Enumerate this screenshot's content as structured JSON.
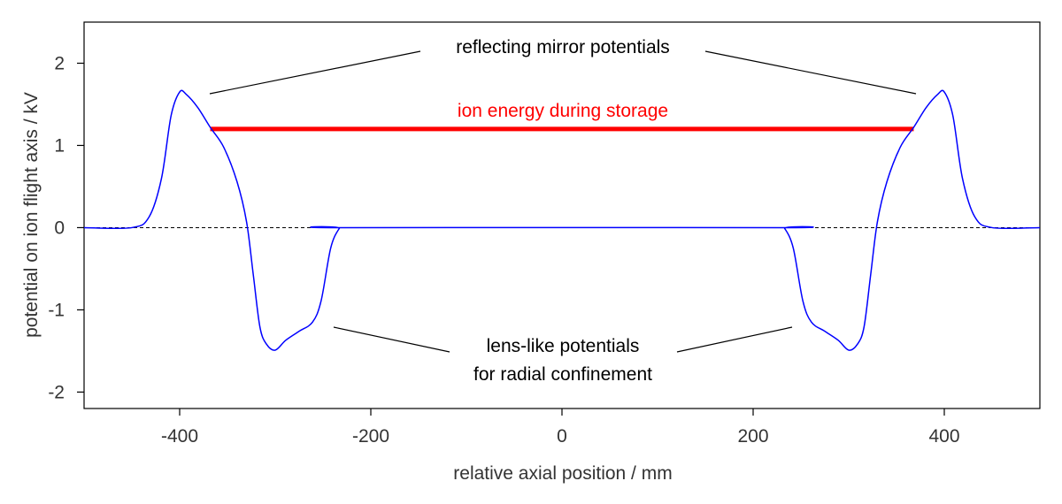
{
  "chart_data": {
    "type": "line",
    "title": "",
    "xlabel": "relative axial position / mm",
    "ylabel": "potential on ion flight axis / kV",
    "xlim": [
      -500,
      500
    ],
    "ylim": [
      -2.2,
      2.5
    ],
    "xticks": [
      -400,
      -200,
      0,
      200,
      400
    ],
    "xtick_labels": [
      "-400",
      "-200",
      "0",
      "200",
      "400"
    ],
    "yticks": [
      -2,
      -1,
      0,
      1,
      2
    ],
    "ytick_labels": [
      "-2",
      "-1",
      "0",
      "1",
      "2"
    ],
    "grid": false,
    "series": [
      {
        "name": "axial potential",
        "color": "#0000ff",
        "x": [
          -500,
          -450,
          -432,
          -419,
          -409,
          -400,
          -393,
          -381,
          -368,
          -354,
          -340,
          -330,
          -323,
          -316,
          -309,
          -300,
          -289,
          -275,
          -261,
          -252,
          -242,
          -233,
          -228,
          228,
          233,
          242,
          252,
          261,
          275,
          289,
          300,
          309,
          316,
          323,
          330,
          340,
          354,
          368,
          381,
          393,
          400,
          409,
          419,
          432,
          450,
          500
        ],
        "y": [
          0,
          0,
          0.13,
          0.6,
          1.36,
          1.65,
          1.62,
          1.46,
          1.22,
          0.98,
          0.56,
          0.07,
          -0.57,
          -1.21,
          -1.42,
          -1.49,
          -1.37,
          -1.26,
          -1.15,
          -0.89,
          -0.25,
          -0.01,
          0,
          0,
          -0.01,
          -0.25,
          -0.89,
          -1.15,
          -1.26,
          -1.37,
          -1.49,
          -1.42,
          -1.21,
          -0.57,
          0.07,
          0.56,
          0.98,
          1.22,
          1.46,
          1.62,
          1.65,
          1.36,
          0.6,
          0.13,
          0,
          0
        ]
      },
      {
        "name": "ion energy during storage",
        "color": "#ff0000",
        "x": [
          -368,
          368
        ],
        "y": [
          1.2,
          1.2
        ]
      },
      {
        "name": "zero reference",
        "color": "#000000",
        "x": [
          -500,
          500
        ],
        "y": [
          0,
          0
        ]
      }
    ],
    "annotations": {
      "mirror": "reflecting mirror potentials",
      "energy": "ion energy during storage",
      "lens_line1": "lens-like potentials",
      "lens_line2": "for radial confinement"
    }
  }
}
